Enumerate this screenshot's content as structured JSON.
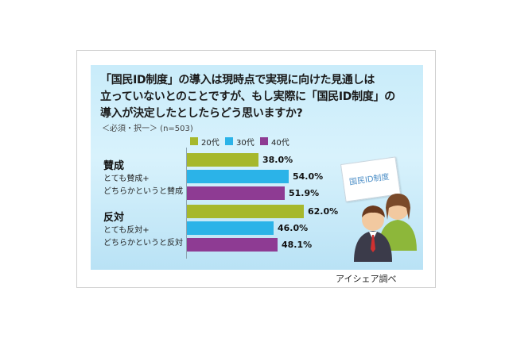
{
  "question": {
    "line1": "「国民ID制度」の導入は現時点で実現に向けた見通しは",
    "line2": "立っていないとのことですが、もし実際に「国民ID制度」の",
    "line3": "導入が決定したとしたらどう思いますか?"
  },
  "note": "＜必須・択一＞ (n=503)",
  "stamp_text": "国民ID制度",
  "source": "アイシェア調べ",
  "chart_data": {
    "type": "bar",
    "orientation": "horizontal",
    "categories": [
      "賛成",
      "反対"
    ],
    "category_notes": [
      [
        "とても賛成+",
        "どちらかというと賛成"
      ],
      [
        "とても反対+",
        "どちらかというと反対"
      ]
    ],
    "series": [
      {
        "name": "20代",
        "color": "#a6b82c",
        "values": [
          38.0,
          62.0
        ]
      },
      {
        "name": "30代",
        "color": "#2bb3e8",
        "values": [
          54.0,
          46.0
        ]
      },
      {
        "name": "40代",
        "color": "#8e3b93",
        "values": [
          51.9,
          48.1
        ]
      }
    ],
    "value_labels": [
      [
        "38.0%",
        "62.0%"
      ],
      [
        "54.0%",
        "46.0%"
      ],
      [
        "51.9%",
        "48.1%"
      ]
    ],
    "unit": "%",
    "xlim": [
      0,
      100
    ],
    "legend": "top",
    "grid": false
  }
}
